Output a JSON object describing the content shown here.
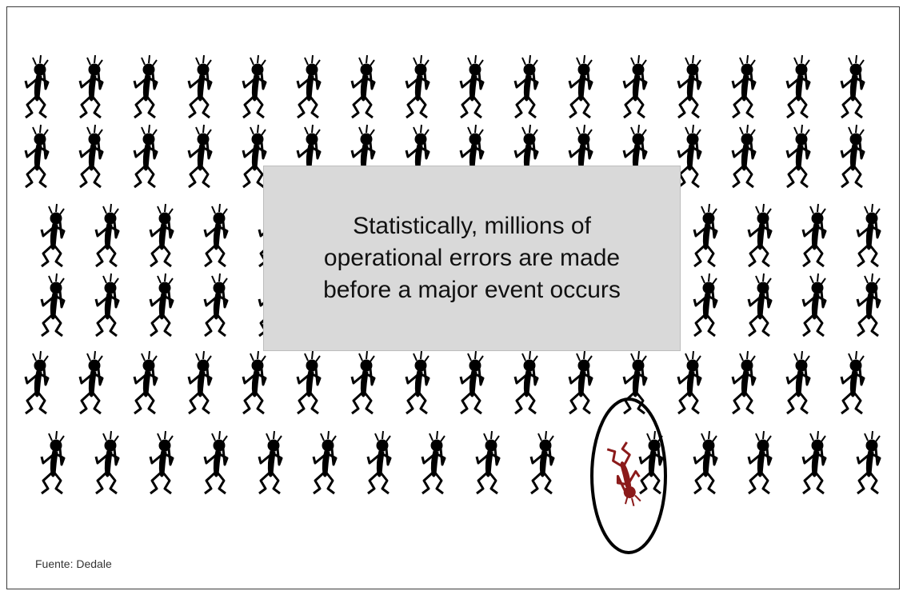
{
  "callout": {
    "text": "Statistically, millions of operational errors are made before a major event occurs"
  },
  "source": {
    "text": "Fuente: Dedale"
  },
  "figures": {
    "rows": 6,
    "columns": 16,
    "upright_color": "#000000",
    "fallen_color": "#8b1a1a",
    "highlight_ring_color": "#000000",
    "fallen_position": {
      "row": 6,
      "column": 11
    }
  }
}
